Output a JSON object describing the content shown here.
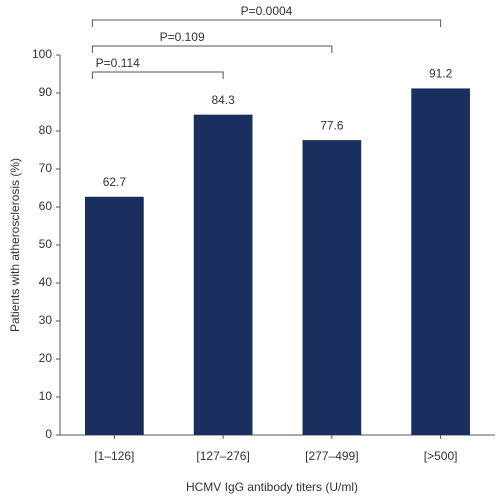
{
  "chart_data": {
    "type": "bar",
    "y_label": "Patients with atherosclerosis (%)",
    "x_label": "HCMV IgG antibody titers (U/ml)",
    "categories": [
      "[1–126]",
      "[127–276]",
      "[277–499]",
      "[>500]"
    ],
    "values": [
      62.7,
      84.3,
      77.6,
      91.2
    ],
    "color": "#1b2f5e",
    "ylim": [
      0,
      100
    ],
    "yticks": [
      0,
      10,
      20,
      30,
      40,
      50,
      60,
      70,
      80,
      90,
      100
    ],
    "annotations": [
      "P=0.114",
      "P=0.109",
      "P=0.0004"
    ]
  }
}
